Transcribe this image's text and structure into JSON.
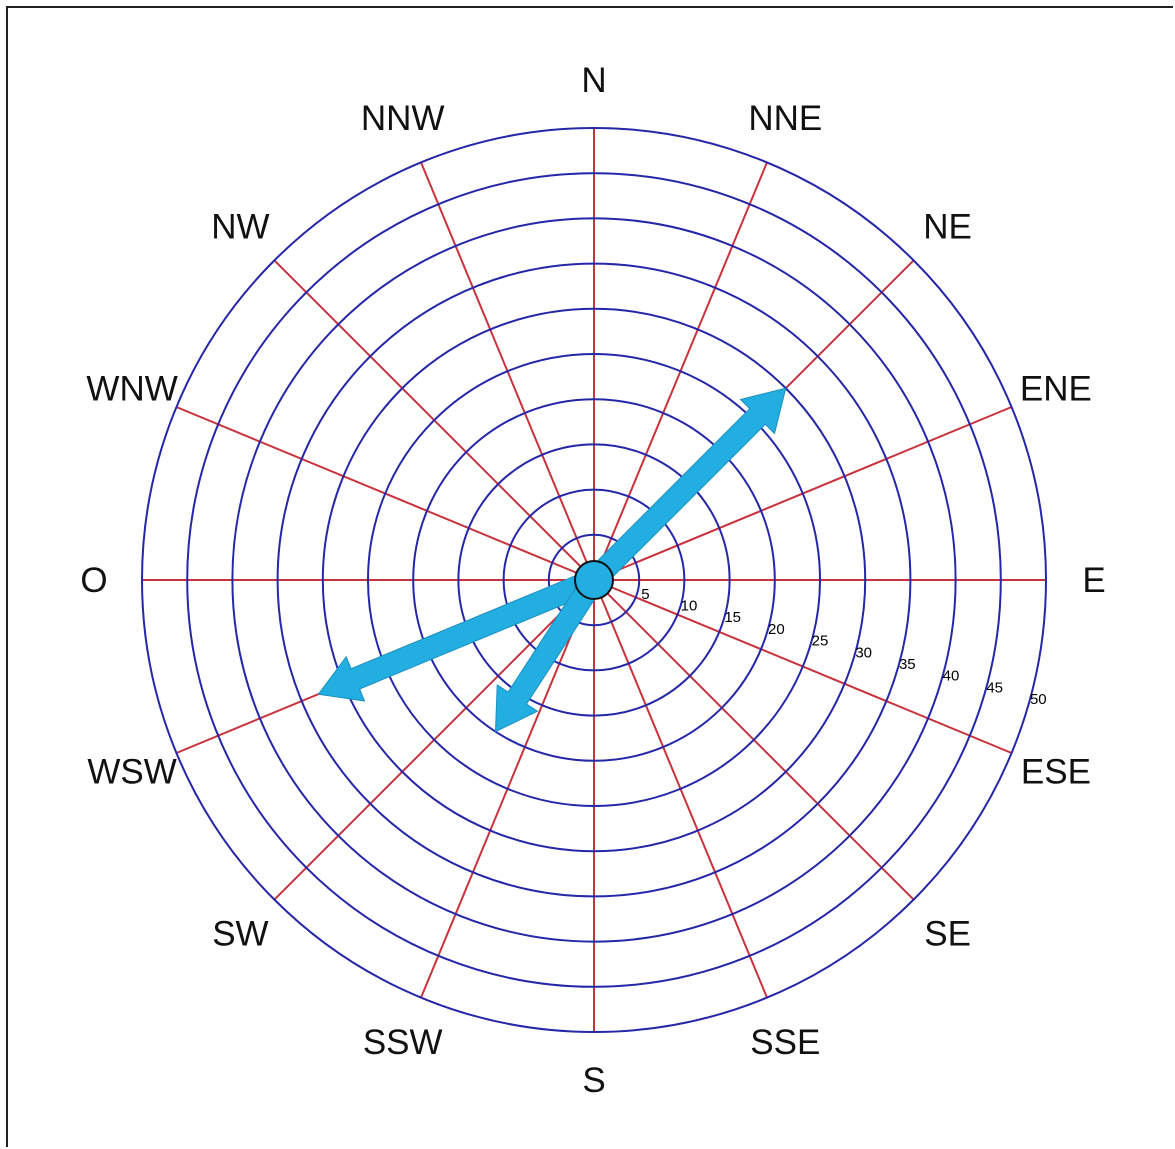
{
  "chart_data": {
    "type": "polar",
    "directions": [
      "N",
      "NNE",
      "NE",
      "ENE",
      "E",
      "ESE",
      "SE",
      "SSE",
      "S",
      "SSW",
      "SW",
      "WSW",
      "O",
      "WNW",
      "NW",
      "NNW"
    ],
    "rings": [
      5,
      10,
      15,
      20,
      25,
      30,
      35,
      40,
      45,
      50
    ],
    "rlim": [
      0,
      50
    ],
    "vectors": [
      {
        "direction_deg": 45,
        "magnitude": 30
      },
      {
        "direction_deg": 247.5,
        "magnitude": 33
      },
      {
        "direction_deg": 213,
        "magnitude": 20
      }
    ],
    "colors": {
      "rings": "#2626a8",
      "spokes": "#c8323c",
      "arrows": "#22aee0",
      "hub": "#22aee0"
    }
  }
}
